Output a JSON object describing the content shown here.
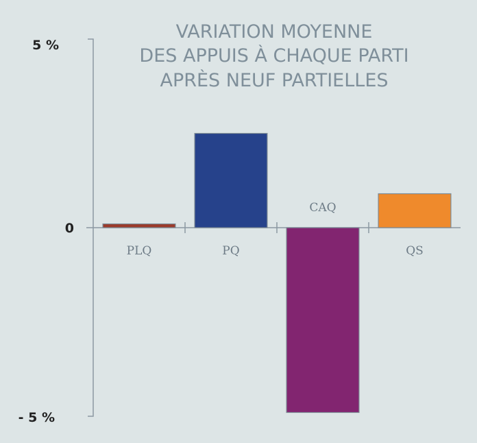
{
  "chart_data": {
    "type": "bar",
    "title_lines": [
      "VARIATION MOYENNE",
      "DES APPUIS À CHAQUE PARTI",
      "APRÈS NEUF PARTIELLES"
    ],
    "categories": [
      "PLQ",
      "PQ",
      "CAQ",
      "QS"
    ],
    "values": [
      0.1,
      2.5,
      -4.9,
      0.9
    ],
    "colors": [
      "#9b3b2b",
      "#26428b",
      "#822570",
      "#ef8a2c"
    ],
    "ylim": [
      -5,
      5
    ],
    "ytick_labels": [
      "5 %",
      "0",
      "- 5 %"
    ],
    "grid": false,
    "legend": "none"
  }
}
